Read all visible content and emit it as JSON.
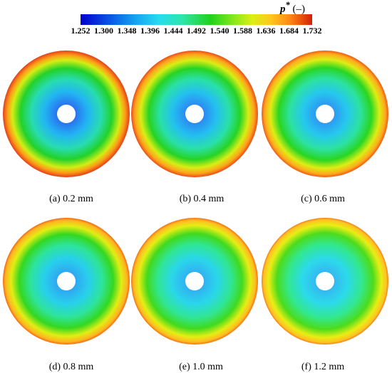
{
  "legend": {
    "title": "p",
    "title_sup": "*",
    "unit": " (–)",
    "ticks": [
      "1.252",
      "1.300",
      "1.348",
      "1.396",
      "1.444",
      "1.492",
      "1.540",
      "1.588",
      "1.636",
      "1.684",
      "1.732"
    ],
    "colors": [
      "#0000cc",
      "#0a50e6",
      "#14a6f0",
      "#28dcee",
      "#2ee6a8",
      "#1ed21e",
      "#86e81a",
      "#dcee14",
      "#ffc81e",
      "#ff8c14",
      "#d21e0c"
    ]
  },
  "panels": [
    {
      "caption": "(a) 0.2 mm"
    },
    {
      "caption": "(b) 0.4 mm"
    },
    {
      "caption": "(c) 0.6 mm"
    },
    {
      "caption": "(d) 0.8 mm"
    },
    {
      "caption": "(e) 1.0 mm"
    },
    {
      "caption": "(f) 1.2 mm"
    }
  ]
}
